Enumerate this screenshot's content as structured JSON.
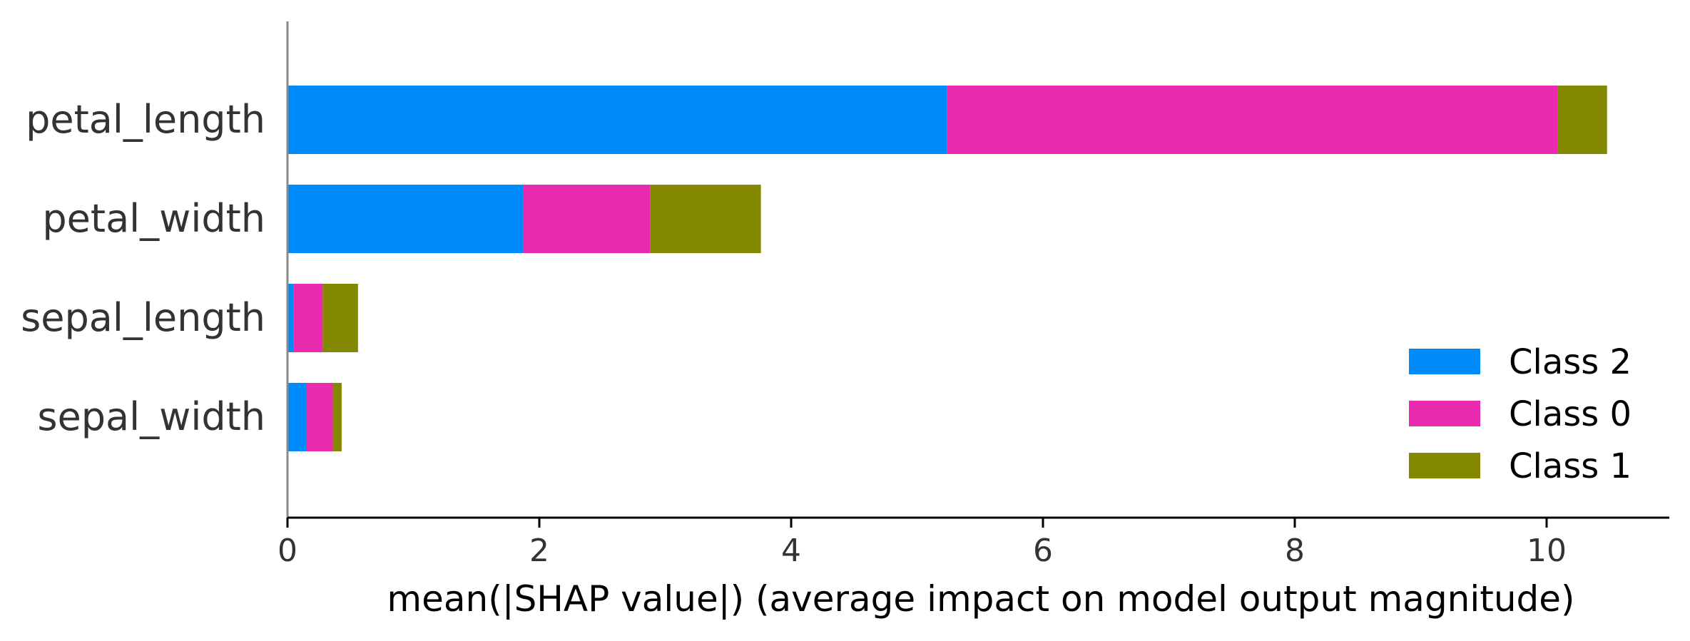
{
  "chart_data": {
    "type": "bar",
    "orientation": "horizontal",
    "stacked": true,
    "categories": [
      "petal_length",
      "petal_width",
      "sepal_length",
      "sepal_width"
    ],
    "series": [
      {
        "name": "Class 2",
        "color": "#008bfb",
        "values": [
          5.24,
          1.87,
          0.05,
          0.15
        ]
      },
      {
        "name": "Class 0",
        "color": "#ea2aae",
        "values": [
          4.85,
          1.01,
          0.23,
          0.21
        ]
      },
      {
        "name": "Class 1",
        "color": "#838800",
        "values": [
          0.39,
          0.88,
          0.28,
          0.07
        ]
      }
    ],
    "xlabel": "mean(|SHAP value|) (average impact on model output magnitude)",
    "xlim": [
      0,
      11
    ],
    "xticks": [
      "0",
      "2",
      "4",
      "6",
      "8",
      "10"
    ],
    "xtick_values": [
      0,
      2,
      4,
      6,
      8,
      10
    ],
    "legend": {
      "position": "lower-right",
      "order": [
        "Class 2",
        "Class 0",
        "Class 1"
      ]
    },
    "grid": false
  }
}
